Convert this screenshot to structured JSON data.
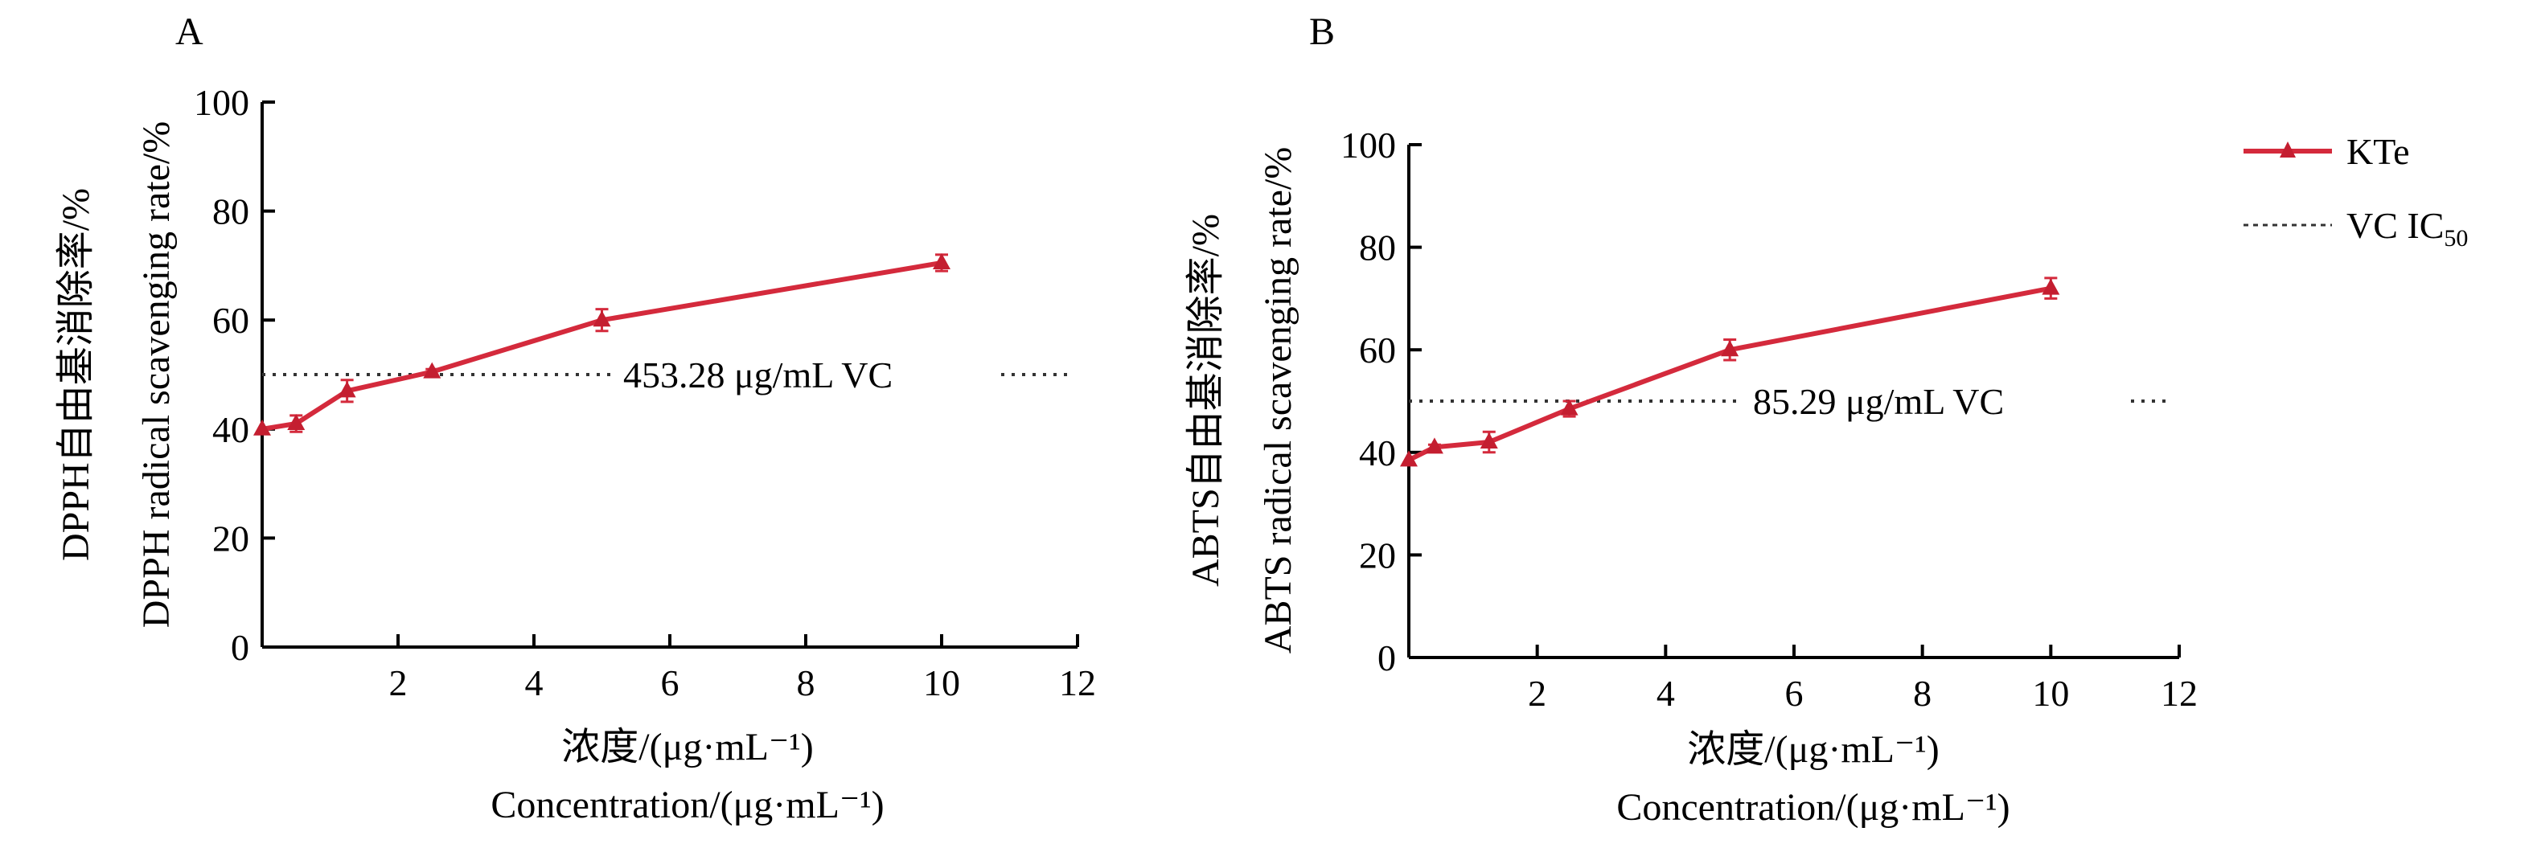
{
  "chart_data": [
    {
      "panel_label": "A",
      "type": "line",
      "ylabel_cn": "DPPH自由基消除率/%",
      "ylabel_en": "DPPH radical scavenging rate/%",
      "xlabel_cn": "浓度/(μg·mL⁻¹)",
      "xlabel_en": "Concentration/(μg·mL⁻¹)",
      "xlim": [
        0,
        12
      ],
      "ylim": [
        0,
        100
      ],
      "xticks": [
        2,
        4,
        6,
        8,
        10,
        12
      ],
      "yticks": [
        0,
        20,
        40,
        60,
        80,
        100
      ],
      "series": [
        {
          "name": "KTe",
          "x": [
            0.0,
            0.5,
            1.25,
            2.5,
            5,
            10
          ],
          "y": [
            40,
            41,
            47,
            50.5,
            60,
            70.5
          ],
          "error": [
            0,
            1.5,
            2,
            0.5,
            2,
            1.5
          ]
        }
      ],
      "reference_line": {
        "y": 50,
        "label": "453.28 μg/mL VC"
      }
    },
    {
      "panel_label": "B",
      "type": "line",
      "ylabel_cn": "ABTS自由基消除率/%",
      "ylabel_en": "ABTS radical scavenging rate/%",
      "xlabel_cn": "浓度/(μg·mL⁻¹)",
      "xlabel_en": "Concentration/(μg·mL⁻¹)",
      "xlim": [
        0,
        12
      ],
      "ylim": [
        0,
        100
      ],
      "xticks": [
        2,
        4,
        6,
        8,
        10,
        12
      ],
      "yticks": [
        0,
        20,
        40,
        60,
        80,
        100
      ],
      "series": [
        {
          "name": "KTe",
          "x": [
            0.0,
            0.4,
            1.25,
            2.5,
            5,
            10
          ],
          "y": [
            38.5,
            41,
            42,
            48.5,
            60,
            72
          ],
          "error": [
            0,
            0.5,
            2,
            1.5,
            2,
            2
          ]
        }
      ],
      "reference_line": {
        "y": 50,
        "label": "85.29 μg/mL VC"
      }
    }
  ],
  "legend": {
    "series_label": "KTe",
    "ref_label_main": "VC IC",
    "ref_label_sub": "50",
    "placement": "right"
  },
  "colors": {
    "series": "#d42a3c",
    "marker": "#c41e30",
    "reference": "#333333",
    "axis": "#000000"
  }
}
